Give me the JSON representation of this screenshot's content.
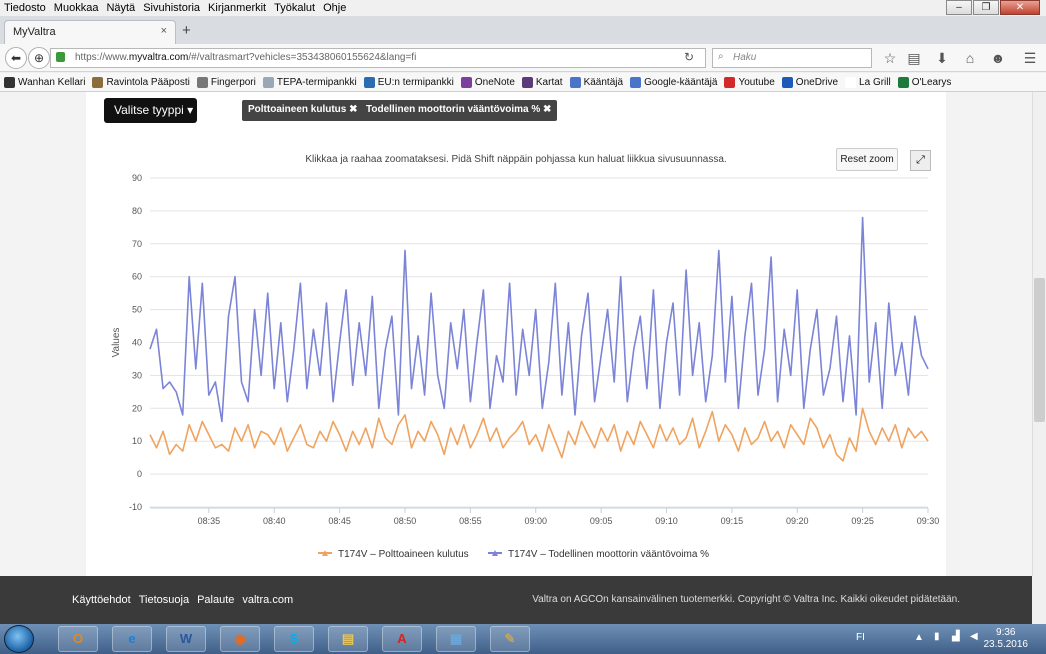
{
  "menu": [
    "Tiedosto",
    "Muokkaa",
    "Näytä",
    "Sivuhistoria",
    "Kirjanmerkit",
    "Työkalut",
    "Ohje"
  ],
  "tab": {
    "title": "MyValtra",
    "close": "×",
    "new": "+"
  },
  "nav": {
    "url_prefix": "https://www.",
    "url_domain": "myvaltra.com",
    "url_rest": "/#/valtrasmart?vehicles=353438060155624&lang=fi",
    "search_placeholder": "Haku"
  },
  "bookmarks": [
    {
      "label": "Wanhan Kellari",
      "color": "#333333"
    },
    {
      "label": "Ravintola Pääposti",
      "color": "#8a6d3b"
    },
    {
      "label": "Fingerpori",
      "color": "#777777"
    },
    {
      "label": "TEPA-termipankki",
      "color": "#9aa7b5"
    },
    {
      "label": "EU:n termipankki",
      "color": "#2b6cb0"
    },
    {
      "label": "OneNote",
      "color": "#7b3fa0"
    },
    {
      "label": "Kartat",
      "color": "#5a3b7a"
    },
    {
      "label": "Kääntäjä",
      "color": "#4a74c9"
    },
    {
      "label": "Google-kääntäjä",
      "color": "#4a74c9"
    },
    {
      "label": "Youtube",
      "color": "#d12a2a"
    },
    {
      "label": "OneDrive",
      "color": "#1e5bb8"
    },
    {
      "label": "La Grill",
      "color": "#ffffff"
    },
    {
      "label": "O'Learys",
      "color": "#1d7a3a"
    }
  ],
  "filters": {
    "type_button": "Valitse tyyppi",
    "chips": [
      "Polttoaineen kulutus ✖",
      "Todellinen moottorin vääntövoima % ✖"
    ]
  },
  "chart_ui": {
    "hint": "Klikkaa ja raahaa zoomataksesi. Pidä Shift näppäin pohjassa kun haluat liikkua sivusuunnassa.",
    "reset_zoom": "Reset zoom"
  },
  "chart_data": {
    "type": "line",
    "ylabel": "Values",
    "xlabel": "",
    "ylim": [
      -10,
      90
    ],
    "yticks": [
      90,
      80,
      70,
      60,
      50,
      40,
      30,
      20,
      10,
      0,
      -10
    ],
    "xtick_labels": [
      "08:35",
      "08:40",
      "08:45",
      "08:50",
      "08:55",
      "09:00",
      "09:05",
      "09:10",
      "09:15",
      "09:20",
      "09:25",
      "09:30"
    ],
    "xtick_minutes": [
      35,
      40,
      45,
      50,
      55,
      60,
      65,
      70,
      75,
      80,
      85,
      90
    ],
    "xlim_minutes": [
      30.5,
      90
    ],
    "grid": true,
    "legend_position": "bottom",
    "series": [
      {
        "name": "T174V – Polttoaineen kulutus",
        "color": "#f0a35e",
        "x": [
          30.5,
          31,
          31.5,
          32,
          32.5,
          33,
          33.5,
          34,
          34.5,
          35,
          35.5,
          36,
          36.5,
          37,
          37.5,
          38,
          38.5,
          39,
          39.5,
          40,
          40.5,
          41,
          41.5,
          42,
          42.5,
          43,
          43.5,
          44,
          44.5,
          45,
          45.5,
          46,
          46.5,
          47,
          47.5,
          48,
          48.5,
          49,
          49.5,
          50,
          50.5,
          51,
          51.5,
          52,
          52.5,
          53,
          53.5,
          54,
          54.5,
          55,
          55.5,
          56,
          56.5,
          57,
          57.5,
          58,
          58.5,
          59,
          59.5,
          60,
          60.5,
          61,
          61.5,
          62,
          62.5,
          63,
          63.5,
          64,
          64.5,
          65,
          65.5,
          66,
          66.5,
          67,
          67.5,
          68,
          68.5,
          69,
          69.5,
          70,
          70.5,
          71,
          71.5,
          72,
          72.5,
          73,
          73.5,
          74,
          74.5,
          75,
          75.5,
          76,
          76.5,
          77,
          77.5,
          78,
          78.5,
          79,
          79.5,
          80,
          80.5,
          81,
          81.5,
          82,
          82.5,
          83,
          83.5,
          84,
          84.5,
          85,
          85.5,
          86,
          86.5,
          87,
          87.5,
          88,
          88.5,
          89,
          89.5,
          90
        ],
        "values": [
          12,
          8,
          13,
          6,
          9,
          7,
          15,
          10,
          16,
          12,
          8,
          9,
          7,
          14,
          10,
          15,
          8,
          13,
          12,
          9,
          14,
          7,
          11,
          15,
          9,
          8,
          13,
          10,
          16,
          12,
          7,
          13,
          9,
          14,
          8,
          17,
          11,
          9,
          15,
          18,
          8,
          13,
          10,
          16,
          12,
          6,
          14,
          9,
          15,
          8,
          12,
          17,
          10,
          14,
          8,
          11,
          13,
          16,
          9,
          12,
          7,
          15,
          10,
          5,
          13,
          9,
          16,
          12,
          8,
          14,
          10,
          15,
          7,
          13,
          9,
          16,
          12,
          8,
          15,
          10,
          14,
          9,
          11,
          17,
          8,
          13,
          19,
          10,
          15,
          12,
          7,
          14,
          9,
          11,
          16,
          10,
          13,
          8,
          15,
          12,
          9,
          17,
          14,
          8,
          12,
          6,
          4,
          11,
          7,
          20,
          13,
          9,
          14,
          10,
          15,
          8,
          14,
          11,
          13,
          10
        ]
      },
      {
        "name": "T174V – Todellinen moottorin vääntövoima %",
        "color": "#7b84d6",
        "x": [
          30.5,
          31,
          31.5,
          32,
          32.5,
          33,
          33.5,
          34,
          34.5,
          35,
          35.5,
          36,
          36.5,
          37,
          37.5,
          38,
          38.5,
          39,
          39.5,
          40,
          40.5,
          41,
          41.5,
          42,
          42.5,
          43,
          43.5,
          44,
          44.5,
          45,
          45.5,
          46,
          46.5,
          47,
          47.5,
          48,
          48.5,
          49,
          49.5,
          50,
          50.5,
          51,
          51.5,
          52,
          52.5,
          53,
          53.5,
          54,
          54.5,
          55,
          55.5,
          56,
          56.5,
          57,
          57.5,
          58,
          58.5,
          59,
          59.5,
          60,
          60.5,
          61,
          61.5,
          62,
          62.5,
          63,
          63.5,
          64,
          64.5,
          65,
          65.5,
          66,
          66.5,
          67,
          67.5,
          68,
          68.5,
          69,
          69.5,
          70,
          70.5,
          71,
          71.5,
          72,
          72.5,
          73,
          73.5,
          74,
          74.5,
          75,
          75.5,
          76,
          76.5,
          77,
          77.5,
          78,
          78.5,
          79,
          79.5,
          80,
          80.5,
          81,
          81.5,
          82,
          82.5,
          83,
          83.5,
          84,
          84.5,
          85,
          85.5,
          86,
          86.5,
          87,
          87.5,
          88,
          88.5,
          89,
          89.5,
          90
        ],
        "values": [
          38,
          44,
          26,
          28,
          25,
          18,
          60,
          32,
          58,
          24,
          28,
          16,
          48,
          60,
          28,
          22,
          50,
          30,
          55,
          26,
          46,
          22,
          38,
          58,
          26,
          44,
          30,
          52,
          22,
          40,
          56,
          27,
          46,
          30,
          54,
          20,
          38,
          48,
          18,
          68,
          26,
          42,
          24,
          55,
          30,
          20,
          46,
          32,
          50,
          22,
          40,
          56,
          20,
          36,
          28,
          58,
          24,
          44,
          30,
          50,
          20,
          34,
          58,
          24,
          46,
          18,
          42,
          55,
          22,
          36,
          50,
          28,
          60,
          22,
          38,
          48,
          26,
          56,
          20,
          40,
          52,
          24,
          62,
          30,
          46,
          22,
          36,
          68,
          28,
          54,
          20,
          42,
          58,
          24,
          38,
          66,
          22,
          44,
          30,
          56,
          20,
          38,
          50,
          24,
          32,
          48,
          22,
          42,
          18,
          78,
          28,
          46,
          20,
          52,
          30,
          40,
          24,
          48,
          36,
          32
        ]
      }
    ]
  },
  "footer": {
    "links": [
      "Käyttöehdot",
      "Tietosuoja",
      "Palaute",
      "valtra.com"
    ],
    "copyright": "Valtra on AGCOn kansainvälinen tuotemerkki. Copyright © Valtra Inc. Kaikki oikeudet pidätetään."
  },
  "taskbar": {
    "apps": [
      {
        "name": "outlook",
        "glyph": "O",
        "color": "#e08a1c"
      },
      {
        "name": "internet-explorer",
        "glyph": "e",
        "color": "#1f7fd6"
      },
      {
        "name": "word",
        "glyph": "W",
        "color": "#2b579a"
      },
      {
        "name": "firefox",
        "glyph": "◉",
        "color": "#e66a1f"
      },
      {
        "name": "skype",
        "glyph": "S",
        "color": "#00aff0"
      },
      {
        "name": "explorer",
        "glyph": "▤",
        "color": "#e8c55a"
      },
      {
        "name": "acrobat",
        "glyph": "A",
        "color": "#d6231f"
      },
      {
        "name": "network-app",
        "glyph": "▦",
        "color": "#6aa6d8"
      },
      {
        "name": "paint",
        "glyph": "✎",
        "color": "#c9a24f"
      }
    ],
    "lang": "FI",
    "time": "9:36",
    "date": "23.5.2016"
  }
}
